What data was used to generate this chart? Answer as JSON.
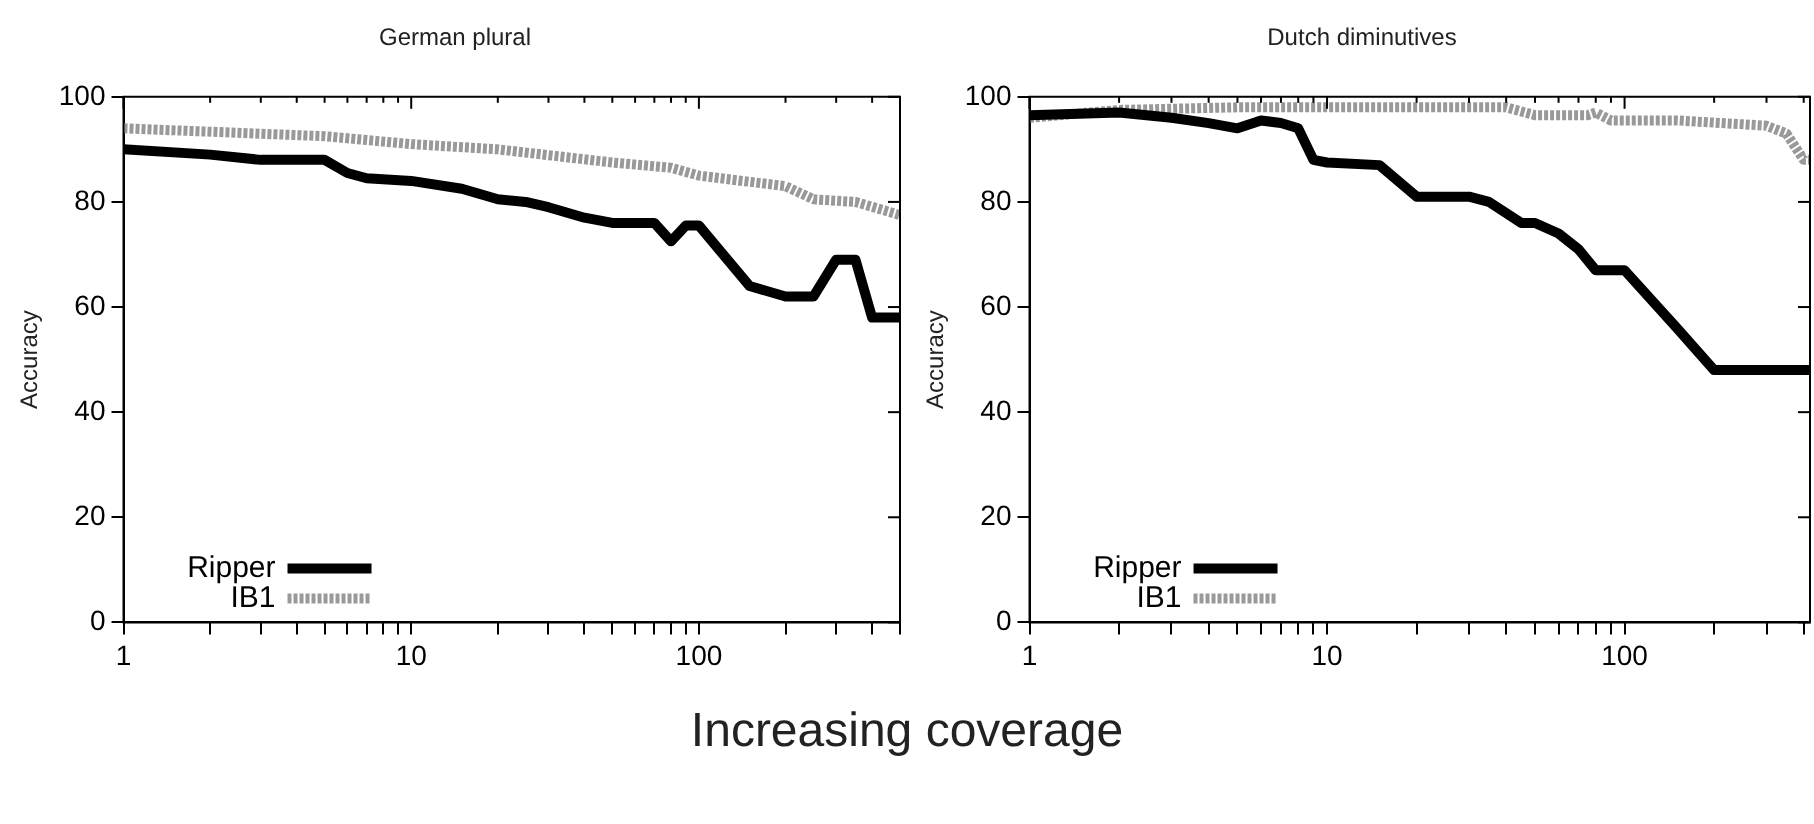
{
  "chart_data": [
    {
      "type": "line",
      "title": "German plural",
      "ylabel": "Accuracy",
      "log": "x",
      "grid": false,
      "legend": "bottom left",
      "xlim": [
        1,
        500
      ],
      "ylim": [
        0,
        100
      ],
      "xticks": [
        1,
        {
          "value": 2,
          "label": null
        },
        {
          "value": 3,
          "label": null
        },
        {
          "value": 4,
          "label": null
        },
        {
          "value": 5,
          "label": null
        },
        {
          "value": 6,
          "label": null
        },
        {
          "value": 7,
          "label": null
        },
        {
          "value": 8,
          "label": null
        },
        {
          "value": 9,
          "label": null
        },
        10,
        {
          "value": 20,
          "label": null
        },
        {
          "value": 30,
          "label": null
        },
        {
          "value": 40,
          "label": null
        },
        {
          "value": 50,
          "label": null
        },
        {
          "value": 60,
          "label": null
        },
        {
          "value": 70,
          "label": null
        },
        {
          "value": 80,
          "label": null
        },
        {
          "value": 90,
          "label": null
        },
        100,
        {
          "value": 200,
          "label": null
        },
        {
          "value": 300,
          "label": null
        },
        {
          "value": 400,
          "label": null
        },
        {
          "value": 500,
          "label": null
        }
      ],
      "yticks": [
        0,
        20,
        40,
        60,
        80,
        100
      ],
      "annotations": [
        "Increasing coverage"
      ],
      "series": [
        {
          "name": "Ripper",
          "color": "#000000",
          "line_style": "solid",
          "x": [
            1,
            2,
            3,
            5,
            6,
            7,
            10,
            15,
            20,
            25,
            30,
            40,
            50,
            70,
            80,
            90,
            100,
            150,
            200,
            250,
            300,
            350,
            400,
            500
          ],
          "values": [
            90,
            89,
            88,
            88,
            85.5,
            84.5,
            84,
            82.5,
            80.5,
            80,
            79,
            77,
            76,
            76,
            72.5,
            75.5,
            75.5,
            64,
            62,
            62,
            69,
            69,
            58,
            58
          ]
        },
        {
          "name": "IB1",
          "color": "#999999",
          "line_style": "dashed",
          "x": [
            1,
            5,
            10,
            20,
            50,
            80,
            100,
            200,
            250,
            350,
            500
          ],
          "values": [
            94,
            92.5,
            91,
            90,
            87.5,
            86.5,
            85,
            83,
            80.5,
            80,
            77.5
          ]
        }
      ]
    },
    {
      "type": "line",
      "title": "Dutch diminutives",
      "ylabel": "Accuracy",
      "log": "x",
      "grid": false,
      "legend": "bottom left",
      "xlim": [
        1,
        420
      ],
      "ylim": [
        0,
        100
      ],
      "xticks": [
        1,
        {
          "value": 2,
          "label": null
        },
        {
          "value": 3,
          "label": null
        },
        {
          "value": 4,
          "label": null
        },
        {
          "value": 5,
          "label": null
        },
        {
          "value": 6,
          "label": null
        },
        {
          "value": 7,
          "label": null
        },
        {
          "value": 8,
          "label": null
        },
        {
          "value": 9,
          "label": null
        },
        10,
        {
          "value": 20,
          "label": null
        },
        {
          "value": 30,
          "label": null
        },
        {
          "value": 40,
          "label": null
        },
        {
          "value": 50,
          "label": null
        },
        {
          "value": 60,
          "label": null
        },
        {
          "value": 70,
          "label": null
        },
        {
          "value": 80,
          "label": null
        },
        {
          "value": 90,
          "label": null
        },
        100,
        {
          "value": 200,
          "label": null
        },
        {
          "value": 300,
          "label": null
        },
        {
          "value": 400,
          "label": null
        }
      ],
      "yticks": [
        0,
        20,
        40,
        60,
        80,
        100
      ],
      "series": [
        {
          "name": "Ripper",
          "color": "#000000",
          "line_style": "solid",
          "x": [
            1,
            2,
            3,
            4,
            5,
            6,
            7,
            8,
            9,
            10,
            15,
            20,
            30,
            35,
            45,
            50,
            60,
            70,
            80,
            100,
            150,
            200,
            420
          ],
          "values": [
            96.5,
            97,
            96,
            95,
            94,
            95.5,
            95,
            94,
            88,
            87.5,
            87,
            81,
            81,
            80,
            76,
            76,
            74,
            71,
            67,
            67,
            56,
            48,
            48
          ]
        },
        {
          "name": "IB1",
          "color": "#999999",
          "line_style": "dashed",
          "x": [
            1,
            2,
            5,
            40,
            50,
            75,
            80,
            90,
            150,
            300,
            350,
            400,
            420
          ],
          "values": [
            96,
            97.5,
            98,
            98,
            96.5,
            96.5,
            97,
            95.5,
            95.5,
            94.5,
            93,
            88,
            88
          ]
        }
      ]
    }
  ]
}
